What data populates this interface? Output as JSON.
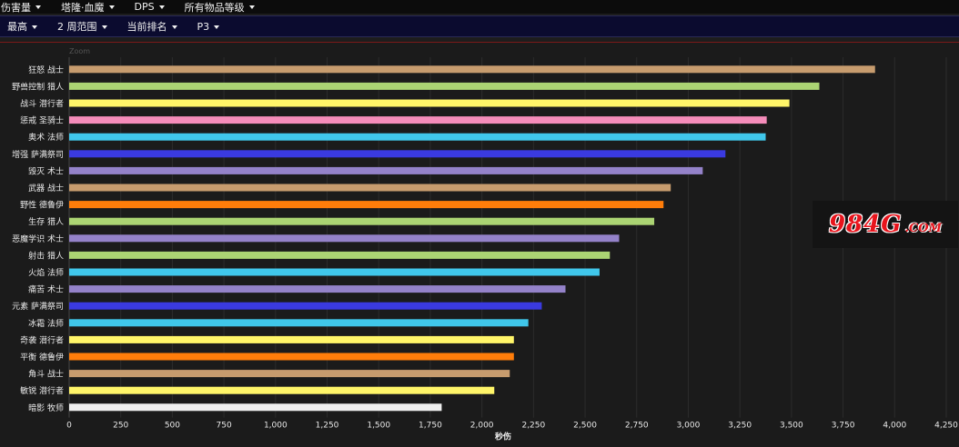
{
  "toolbar_top": {
    "items": [
      {
        "label": "伤害量"
      },
      {
        "label": "塔隆·血魔"
      },
      {
        "label": "DPS"
      },
      {
        "label": "所有物品等级"
      }
    ]
  },
  "toolbar_filters": {
    "items": [
      {
        "label": "最高"
      },
      {
        "label": "2 周范围"
      },
      {
        "label": "当前排名"
      },
      {
        "label": "P3"
      }
    ]
  },
  "chart_header": {
    "zoom_label": "Zoom"
  },
  "watermark": {
    "text": "984G",
    "suffix": ".COM"
  },
  "chart_data": {
    "type": "bar",
    "orientation": "horizontal",
    "xlabel": "秒伤",
    "xlim": [
      0,
      4250
    ],
    "xticks": [
      0,
      250,
      500,
      750,
      1000,
      1250,
      1500,
      1750,
      2000,
      2250,
      2500,
      2750,
      3000,
      3250,
      3500,
      3750,
      4000,
      4250
    ],
    "xtick_labels": [
      "0",
      "250",
      "500",
      "750",
      "1,000",
      "1,250",
      "1,500",
      "1,750",
      "2,000",
      "2,250",
      "2,500",
      "2,750",
      "3,000",
      "3,250",
      "3,500",
      "3,750",
      "4,000",
      "4,250"
    ],
    "grid": true,
    "categories": [
      "狂怒 战士",
      "野兽控制 猎人",
      "战斗 潜行者",
      "惩戒 圣骑士",
      "奥术 法师",
      "增强 萨满祭司",
      "毁灭 术士",
      "武器 战士",
      "野性 德鲁伊",
      "生存 猎人",
      "恶魔学识 术士",
      "射击 猎人",
      "火焰 法师",
      "痛苦 术士",
      "元素 萨满祭司",
      "冰霜 法师",
      "奇袭 潜行者",
      "平衡 德鲁伊",
      "角斗 战士",
      "敏锐 潜行者",
      "暗影 牧师"
    ],
    "values": [
      3905,
      3635,
      3490,
      3380,
      3375,
      3180,
      3070,
      2915,
      2880,
      2835,
      2665,
      2620,
      2570,
      2405,
      2290,
      2225,
      2155,
      2155,
      2135,
      2060,
      1805
    ],
    "colors": [
      "#C79C6E",
      "#ABD473",
      "#FFF569",
      "#F58CBA",
      "#40C7EB",
      "#3a3ae0",
      "#9482C9",
      "#C79C6E",
      "#FF7D0A",
      "#ABD473",
      "#9482C9",
      "#ABD473",
      "#40C7EB",
      "#9482C9",
      "#3a3ae0",
      "#40C7EB",
      "#FFF569",
      "#FF7D0A",
      "#C79C6E",
      "#FFF569",
      "#F0F0F0"
    ]
  }
}
